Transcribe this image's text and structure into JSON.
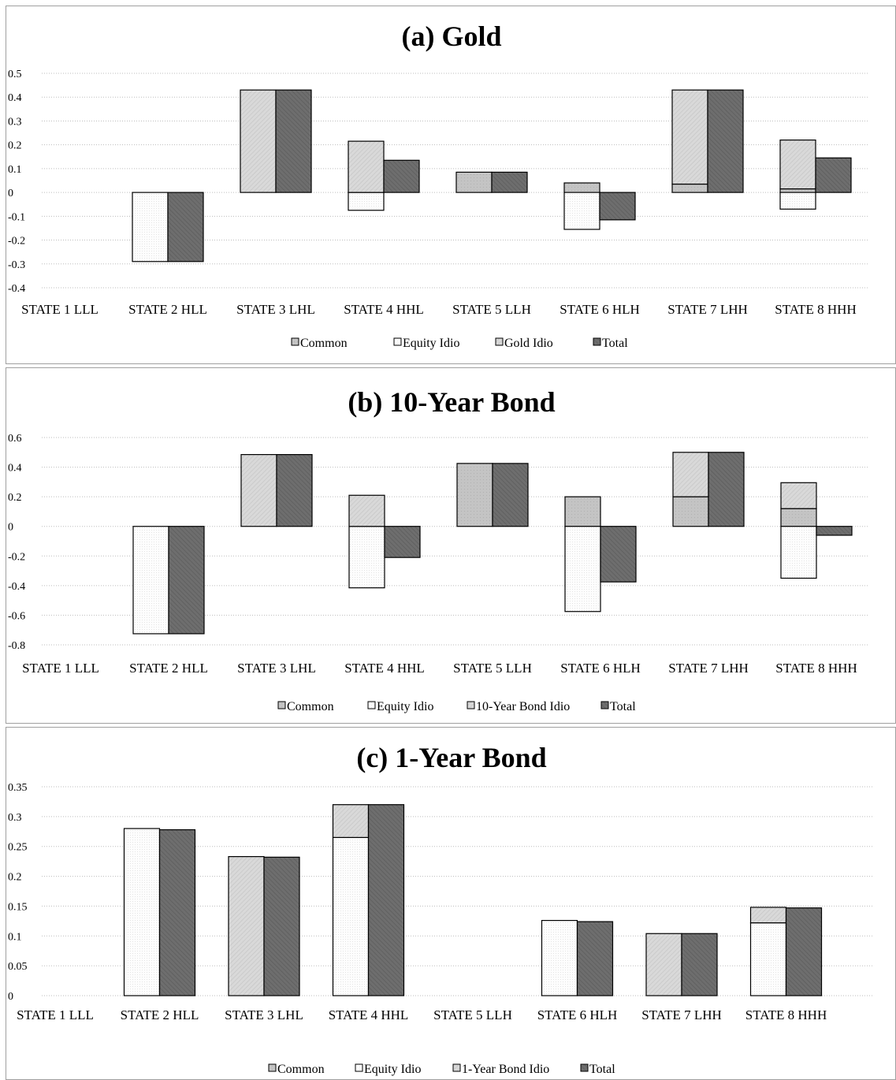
{
  "colors": {
    "common": "#c4c4c4",
    "equity_idio": "#fdfdfd",
    "asset_idio": "#d9d9d9",
    "total": "#6e6e6e",
    "grid": "#bdbdbd",
    "border": "#a0a0a0"
  },
  "chart_data": [
    {
      "type": "bar",
      "title": "(a) Gold",
      "categories": [
        "STATE 1 LLL",
        "STATE 2 HLL",
        "STATE 3 LHL",
        "STATE 4 HHL",
        "STATE 5 LLH",
        "STATE 6 HLH",
        "STATE 7 LHH",
        "STATE 8 HHH"
      ],
      "yticks": [
        "0.5",
        "0.4",
        "0.3",
        "0.2",
        "0.1",
        "0",
        "-0.1",
        "-0.2",
        "-0.3",
        "-0.4"
      ],
      "ylim": [
        -0.4,
        0.5
      ],
      "grid": true,
      "legend_position": "bottom",
      "legend": [
        "Common",
        "Equity Idio",
        "Gold Idio",
        "Total"
      ],
      "series": [
        {
          "name": "Common",
          "values": [
            0,
            0,
            0,
            0,
            0.085,
            0.04,
            0.035,
            0.015
          ]
        },
        {
          "name": "Equity Idio",
          "values": [
            0,
            -0.29,
            0,
            -0.075,
            0,
            -0.155,
            0,
            -0.07
          ]
        },
        {
          "name": "Gold Idio",
          "values": [
            0,
            0,
            0.43,
            0.215,
            0,
            0,
            0.395,
            0.205
          ]
        },
        {
          "name": "Total",
          "values": [
            0,
            -0.29,
            0.43,
            0.135,
            0.085,
            -0.115,
            0.43,
            0.145
          ]
        }
      ]
    },
    {
      "type": "bar",
      "title": "(b) 10-Year Bond",
      "categories": [
        "STATE 1 LLL",
        "STATE 2 HLL",
        "STATE 3 LHL",
        "STATE 4 HHL",
        "STATE 5 LLH",
        "STATE 6 HLH",
        "STATE 7 LHH",
        "STATE 8 HHH"
      ],
      "yticks": [
        "0.6",
        "0.4",
        "0.2",
        "0",
        "-0.2",
        "-0.4",
        "-0.6",
        "-0.8"
      ],
      "ylim": [
        -0.8,
        0.6
      ],
      "grid": true,
      "legend_position": "bottom",
      "legend": [
        "Common",
        "Equity Idio",
        "10-Year Bond Idio",
        "Total"
      ],
      "series": [
        {
          "name": "Common",
          "values": [
            0,
            0,
            0,
            0,
            0.425,
            0.2,
            0.2,
            0.12
          ]
        },
        {
          "name": "Equity Idio",
          "values": [
            0,
            -0.725,
            0,
            -0.415,
            0,
            -0.575,
            0,
            -0.35
          ]
        },
        {
          "name": "10-Year Bond Idio",
          "values": [
            0,
            0,
            0.485,
            0.21,
            0,
            0,
            0.3,
            0.175
          ]
        },
        {
          "name": "Total",
          "values": [
            0,
            -0.725,
            0.485,
            -0.21,
            0.425,
            -0.375,
            0.5,
            -0.06
          ]
        }
      ]
    },
    {
      "type": "bar",
      "title": "(c) 1-Year Bond",
      "categories": [
        "STATE 1 LLL",
        "STATE 2 HLL",
        "STATE 3 LHL",
        "STATE 4 HHL",
        "STATE 5 LLH",
        "STATE 6 HLH",
        "STATE 7 LHH",
        "STATE 8 HHH"
      ],
      "yticks": [
        "0.35",
        "0.3",
        "0.25",
        "0.2",
        "0.15",
        "0.1",
        "0.05",
        "0"
      ],
      "ylim": [
        0,
        0.35
      ],
      "grid": true,
      "legend_position": "bottom",
      "legend": [
        "Common",
        "Equity Idio",
        "1-Year Bond Idio",
        "Total"
      ],
      "series": [
        {
          "name": "Common",
          "values": [
            0,
            0,
            0,
            0,
            0,
            0,
            0,
            0
          ]
        },
        {
          "name": "Equity Idio",
          "values": [
            0,
            0.28,
            0,
            0.265,
            0,
            0.126,
            0,
            0.122
          ]
        },
        {
          "name": "1-Year Bond Idio",
          "values": [
            0,
            0,
            0.233,
            0.055,
            0,
            0,
            0.104,
            0.026
          ]
        },
        {
          "name": "Total",
          "values": [
            0,
            0.278,
            0.232,
            0.32,
            0,
            0.124,
            0.104,
            0.147
          ]
        }
      ]
    }
  ]
}
